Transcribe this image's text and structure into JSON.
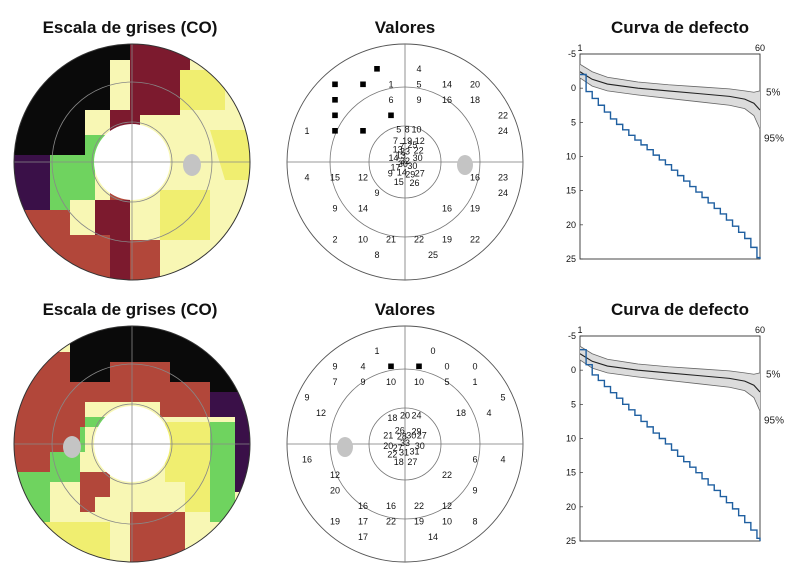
{
  "colors": {
    "black": "#0a0a0a",
    "dark_purple": "#3a1048",
    "maroon": "#7c1a2e",
    "brown_red": "#b2473a",
    "green": "#6fd35f",
    "yellow": "#f0ee70",
    "pale_yellow": "#f8f7b4",
    "white": "#ffffff",
    "grey_spot": "#c4c4c4",
    "curve_blue": "#1f5fa0",
    "band_fill": "#dcdcdc"
  },
  "panels": [
    {
      "grayscale": {
        "title": "Escala de grises (CO)",
        "blind_spot_side": "right"
      },
      "values": {
        "title": "Valores",
        "points": [
          {
            "x": -2,
            "y": 6,
            "v": "■"
          },
          {
            "x": 1,
            "y": 6,
            "v": "4"
          },
          {
            "x": -5,
            "y": 5,
            "v": "■"
          },
          {
            "x": -3,
            "y": 5,
            "v": "■"
          },
          {
            "x": -1,
            "y": 5,
            "v": "1"
          },
          {
            "x": 1,
            "y": 5,
            "v": "5"
          },
          {
            "x": 3,
            "y": 5,
            "v": "14"
          },
          {
            "x": 5,
            "y": 5,
            "v": "20"
          },
          {
            "x": -5,
            "y": 4,
            "v": "■"
          },
          {
            "x": -1,
            "y": 4,
            "v": "6"
          },
          {
            "x": 1,
            "y": 4,
            "v": "9"
          },
          {
            "x": 3,
            "y": 4,
            "v": "16"
          },
          {
            "x": 5,
            "y": 4,
            "v": "18"
          },
          {
            "x": -5,
            "y": 3,
            "v": "■"
          },
          {
            "x": -1,
            "y": 3,
            "v": "■"
          },
          {
            "x": 7,
            "y": 3,
            "v": "22"
          },
          {
            "x": -7,
            "y": 2,
            "v": "1"
          },
          {
            "x": -5,
            "y": 2,
            "v": "■"
          },
          {
            "x": -3,
            "y": 2,
            "v": "■"
          },
          {
            "x": 7,
            "y": 2,
            "v": "24"
          },
          {
            "x": -7,
            "y": -1,
            "v": "4"
          },
          {
            "x": -5,
            "y": -1,
            "v": "15"
          },
          {
            "x": -3,
            "y": -1,
            "v": "12"
          },
          {
            "x": 5,
            "y": -1,
            "v": "16"
          },
          {
            "x": 7,
            "y": -1,
            "v": "23"
          },
          {
            "x": -2,
            "y": -2,
            "v": "9"
          },
          {
            "x": 7,
            "y": -2,
            "v": "24"
          },
          {
            "x": -5,
            "y": -3,
            "v": "9"
          },
          {
            "x": -3,
            "y": -3,
            "v": "14"
          },
          {
            "x": 3,
            "y": -3,
            "v": "16"
          },
          {
            "x": 5,
            "y": -3,
            "v": "19"
          },
          {
            "x": -5,
            "y": -5,
            "v": "2"
          },
          {
            "x": -3,
            "y": -5,
            "v": "10"
          },
          {
            "x": -1,
            "y": -5,
            "v": "21"
          },
          {
            "x": 1,
            "y": -5,
            "v": "22"
          },
          {
            "x": 3,
            "y": -5,
            "v": "19"
          },
          {
            "x": 5,
            "y": -5,
            "v": "22"
          },
          {
            "x": -2,
            "y": -6,
            "v": "8"
          },
          {
            "x": 2,
            "y": -6,
            "v": "25"
          }
        ],
        "central_points": [
          {
            "x": -0.6,
            "y": 3.1,
            "v": "5"
          },
          {
            "x": 0.2,
            "y": 3.1,
            "v": "8"
          },
          {
            "x": 1.1,
            "y": 3.1,
            "v": "10"
          },
          {
            "x": -0.9,
            "y": 2.0,
            "v": "7"
          },
          {
            "x": 0.2,
            "y": 2.0,
            "v": "19"
          },
          {
            "x": 1.4,
            "y": 2.0,
            "v": "12"
          },
          {
            "x": -0.3,
            "y": 1.5,
            "v": "7"
          },
          {
            "x": 0.7,
            "y": 1.6,
            "v": "25"
          },
          {
            "x": -0.7,
            "y": 1.2,
            "v": "13"
          },
          {
            "x": 0.0,
            "y": 1.0,
            "v": "23"
          },
          {
            "x": 1.3,
            "y": 1.1,
            "v": "22"
          },
          {
            "x": -1.1,
            "y": 0.4,
            "v": "14"
          },
          {
            "x": 0.0,
            "y": 0.1,
            "v": "32"
          },
          {
            "x": 1.2,
            "y": 0.4,
            "v": "30"
          },
          {
            "x": -0.4,
            "y": 0.6,
            "v": "13"
          },
          {
            "x": -0.2,
            "y": -0.2,
            "v": "30"
          },
          {
            "x": -0.9,
            "y": -0.5,
            "v": "17"
          },
          {
            "x": 0.7,
            "y": -0.4,
            "v": "30"
          },
          {
            "x": -1.4,
            "y": -1.1,
            "v": "9"
          },
          {
            "x": -0.3,
            "y": -1.0,
            "v": "14"
          },
          {
            "x": 0.5,
            "y": -1.2,
            "v": "29"
          },
          {
            "x": 1.4,
            "y": -1.1,
            "v": "27"
          },
          {
            "x": -0.6,
            "y": -1.9,
            "v": "15"
          },
          {
            "x": 0.9,
            "y": -2.0,
            "v": "26"
          }
        ]
      },
      "defect": {
        "title": "Curva de defecto",
        "x_axis_ticks": [
          "1",
          "60"
        ],
        "y_axis_ticks": [
          "-5",
          "0",
          "5",
          "10",
          "15",
          "20",
          "25"
        ],
        "band_labels": [
          "5%",
          "95%"
        ]
      }
    },
    {
      "grayscale": {
        "title": "Escala de grises (CO)",
        "blind_spot_side": "left"
      },
      "values": {
        "title": "Valores",
        "points": [
          {
            "x": -2,
            "y": 6,
            "v": "1"
          },
          {
            "x": 2,
            "y": 6,
            "v": "0"
          },
          {
            "x": -5,
            "y": 5,
            "v": "9"
          },
          {
            "x": -3,
            "y": 5,
            "v": "4"
          },
          {
            "x": -1,
            "y": 5,
            "v": "■"
          },
          {
            "x": 1,
            "y": 5,
            "v": "■"
          },
          {
            "x": 3,
            "y": 5,
            "v": "0"
          },
          {
            "x": 5,
            "y": 5,
            "v": "0"
          },
          {
            "x": -5,
            "y": 4,
            "v": "7"
          },
          {
            "x": -3,
            "y": 4,
            "v": "9"
          },
          {
            "x": -1,
            "y": 4,
            "v": "10"
          },
          {
            "x": 1,
            "y": 4,
            "v": "10"
          },
          {
            "x": 3,
            "y": 4,
            "v": "5"
          },
          {
            "x": 5,
            "y": 4,
            "v": "1"
          },
          {
            "x": -7,
            "y": 3,
            "v": "9"
          },
          {
            "x": 7,
            "y": 3,
            "v": "5"
          },
          {
            "x": -6,
            "y": 2,
            "v": "12"
          },
          {
            "x": 4,
            "y": 2,
            "v": "18"
          },
          {
            "x": 6,
            "y": 2,
            "v": "4"
          },
          {
            "x": -7,
            "y": -1,
            "v": "16"
          },
          {
            "x": 5,
            "y": -1,
            "v": "6"
          },
          {
            "x": 7,
            "y": -1,
            "v": "4"
          },
          {
            "x": -5,
            "y": -2,
            "v": "12"
          },
          {
            "x": 3,
            "y": -2,
            "v": "22"
          },
          {
            "x": -5,
            "y": -3,
            "v": "20"
          },
          {
            "x": 5,
            "y": -3,
            "v": "9"
          },
          {
            "x": -3,
            "y": -4,
            "v": "16"
          },
          {
            "x": -1,
            "y": -4,
            "v": "16"
          },
          {
            "x": 1,
            "y": -4,
            "v": "22"
          },
          {
            "x": 3,
            "y": -4,
            "v": "12"
          },
          {
            "x": -5,
            "y": -5,
            "v": "19"
          },
          {
            "x": -3,
            "y": -5,
            "v": "17"
          },
          {
            "x": -1,
            "y": -5,
            "v": "22"
          },
          {
            "x": 1,
            "y": -5,
            "v": "19"
          },
          {
            "x": 3,
            "y": -5,
            "v": "10"
          },
          {
            "x": 5,
            "y": -5,
            "v": "8"
          },
          {
            "x": -3,
            "y": -6,
            "v": "17"
          },
          {
            "x": 2,
            "y": -6,
            "v": "14"
          }
        ],
        "central_points": [
          {
            "x": -1.2,
            "y": 2.5,
            "v": "18"
          },
          {
            "x": 0.0,
            "y": 2.7,
            "v": "20"
          },
          {
            "x": 1.1,
            "y": 2.7,
            "v": "24"
          },
          {
            "x": -0.5,
            "y": 1.3,
            "v": "26"
          },
          {
            "x": 1.1,
            "y": 1.2,
            "v": "29"
          },
          {
            "x": -1.6,
            "y": 0.8,
            "v": "21"
          },
          {
            "x": -0.3,
            "y": 0.7,
            "v": "28"
          },
          {
            "x": 0.6,
            "y": 0.8,
            "v": "30"
          },
          {
            "x": 1.6,
            "y": 0.8,
            "v": "27"
          },
          {
            "x": -1.6,
            "y": -0.2,
            "v": "20"
          },
          {
            "x": 0.0,
            "y": 0.1,
            "v": "33"
          },
          {
            "x": -0.7,
            "y": -0.4,
            "v": "27"
          },
          {
            "x": 1.4,
            "y": -0.2,
            "v": "30"
          },
          {
            "x": -0.1,
            "y": -0.8,
            "v": "31"
          },
          {
            "x": 0.9,
            "y": -0.7,
            "v": "31"
          },
          {
            "x": -1.2,
            "y": -1.0,
            "v": "22"
          },
          {
            "x": -0.6,
            "y": -1.7,
            "v": "18"
          },
          {
            "x": 0.7,
            "y": -1.7,
            "v": "27"
          }
        ]
      },
      "defect": {
        "title": "Curva de defecto",
        "x_axis_ticks": [
          "1",
          "60"
        ],
        "y_axis_ticks": [
          "-5",
          "0",
          "5",
          "10",
          "15",
          "20",
          "25"
        ],
        "band_labels": [
          "5%",
          "95%"
        ]
      }
    }
  ],
  "chart_data": [
    {
      "type": "line",
      "title": "Curva de defecto",
      "xlim": [
        1,
        60
      ],
      "ylim": [
        -5,
        25
      ],
      "y_inverted": true,
      "series_defect": {
        "x": [
          1,
          3,
          5,
          7,
          9,
          11,
          13,
          15,
          17,
          19,
          21,
          23,
          25,
          27,
          29,
          31,
          33,
          35,
          37,
          39,
          41,
          43,
          45,
          47,
          49,
          51,
          53,
          55,
          57,
          59,
          60
        ],
        "values": [
          -2,
          0.5,
          1.5,
          2.5,
          3.5,
          4.5,
          5.3,
          6.1,
          6.9,
          7.6,
          8.3,
          9.0,
          9.8,
          10.5,
          11.2,
          12.0,
          12.8,
          13.6,
          14.4,
          15.2,
          16.0,
          16.8,
          17.6,
          18.4,
          19.3,
          20.2,
          21.1,
          22.0,
          23.3,
          24.8,
          25.0
        ]
      },
      "band_5pct": {
        "x": [
          1,
          5,
          10,
          20,
          30,
          40,
          50,
          55,
          58,
          60
        ],
        "values": [
          -3.5,
          -2.4,
          -1.6,
          -0.9,
          -0.5,
          -0.2,
          0.1,
          0.4,
          0.6,
          0.4
        ]
      },
      "band_95pct": {
        "x": [
          1,
          5,
          10,
          20,
          30,
          40,
          50,
          55,
          58,
          60
        ],
        "values": [
          -1.5,
          -0.3,
          0.4,
          1.0,
          1.5,
          2.0,
          2.5,
          3.0,
          4.0,
          6.0
        ]
      },
      "median": {
        "x": [
          1,
          5,
          10,
          20,
          30,
          40,
          50,
          55,
          58,
          60
        ],
        "values": [
          -2.4,
          -1.3,
          -0.6,
          0.0,
          0.4,
          0.8,
          1.2,
          1.6,
          2.2,
          3.2
        ]
      }
    },
    {
      "type": "line",
      "title": "Curva de defecto",
      "xlim": [
        1,
        60
      ],
      "ylim": [
        -5,
        25
      ],
      "y_inverted": true,
      "series_defect": {
        "x": [
          1,
          3,
          5,
          7,
          9,
          11,
          13,
          15,
          17,
          19,
          21,
          23,
          25,
          27,
          29,
          31,
          33,
          35,
          37,
          39,
          41,
          43,
          45,
          47,
          49,
          51,
          53,
          55,
          57,
          59,
          60
        ],
        "values": [
          -3,
          -0.8,
          0.7,
          1.5,
          2.4,
          3.3,
          4.1,
          5.0,
          5.8,
          6.6,
          7.5,
          8.3,
          9.2,
          10.0,
          10.8,
          11.7,
          12.6,
          13.4,
          14.2,
          15.0,
          15.9,
          16.8,
          17.6,
          18.5,
          19.4,
          20.3,
          21.3,
          22.3,
          23.4,
          24.6,
          25.0
        ]
      },
      "band_5pct": {
        "x": [
          1,
          5,
          10,
          20,
          30,
          40,
          50,
          55,
          58,
          60
        ],
        "values": [
          -3.5,
          -2.4,
          -1.6,
          -0.9,
          -0.5,
          -0.2,
          0.1,
          0.4,
          0.6,
          0.4
        ]
      },
      "band_95pct": {
        "x": [
          1,
          5,
          10,
          20,
          30,
          40,
          50,
          55,
          58,
          60
        ],
        "values": [
          -1.5,
          -0.3,
          0.4,
          1.0,
          1.5,
          2.0,
          2.5,
          3.0,
          4.0,
          6.0
        ]
      },
      "median": {
        "x": [
          1,
          5,
          10,
          20,
          30,
          40,
          50,
          55,
          58,
          60
        ],
        "values": [
          -2.4,
          -1.3,
          -0.6,
          0.0,
          0.4,
          0.8,
          1.2,
          1.6,
          2.2,
          3.2
        ]
      }
    }
  ]
}
